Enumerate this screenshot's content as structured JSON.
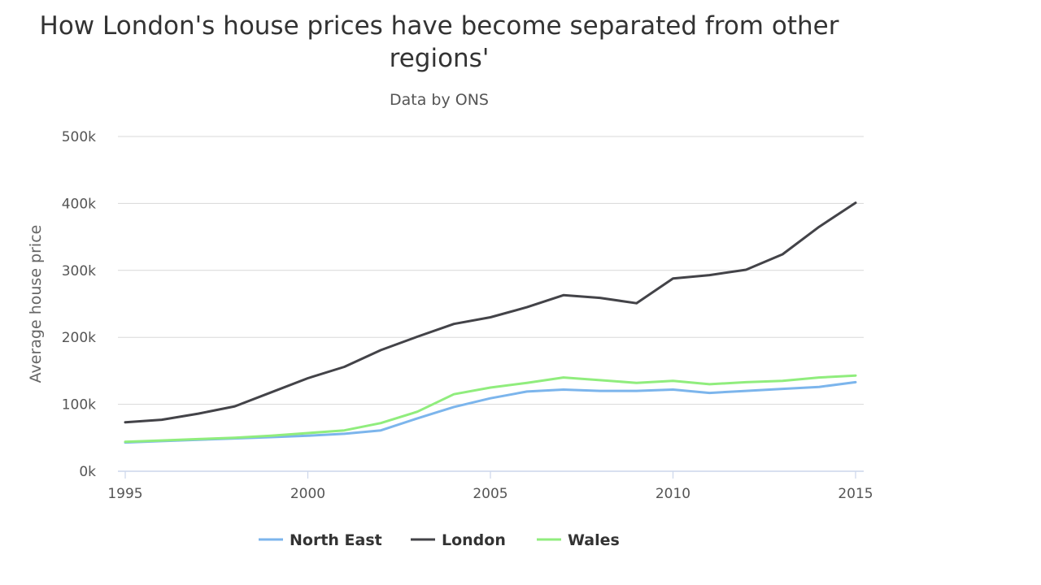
{
  "chart_data": {
    "type": "line",
    "title": "How London's house prices have become separated from other regions'",
    "subtitle": "Data by ONS",
    "ylabel": "Average house price",
    "xlabel": "",
    "xlim": [
      1995,
      2015
    ],
    "ylim": [
      0,
      500000
    ],
    "x_ticks": [
      "1995",
      "2000",
      "2005",
      "2010",
      "2015"
    ],
    "y_ticks": [
      "0k",
      "100k",
      "200k",
      "300k",
      "400k",
      "500k"
    ],
    "grid": true,
    "legend_position": "bottom",
    "x": [
      1995,
      1996,
      1997,
      1998,
      1999,
      2000,
      2001,
      2002,
      2003,
      2004,
      2005,
      2006,
      2007,
      2008,
      2009,
      2010,
      2011,
      2012,
      2013,
      2014,
      2015
    ],
    "series": [
      {
        "name": "North East",
        "color": "#7cb5ec",
        "values": [
          43000,
          45000,
          47000,
          49000,
          51000,
          53000,
          56000,
          61000,
          79000,
          96000,
          109000,
          119000,
          122000,
          120000,
          120000,
          122000,
          117000,
          120000,
          123000,
          126000,
          133000
        ]
      },
      {
        "name": "London",
        "color": "#434348",
        "values": [
          73000,
          77000,
          86000,
          97000,
          118000,
          139000,
          156000,
          181000,
          201000,
          220000,
          230000,
          245000,
          263000,
          259000,
          251000,
          288000,
          293000,
          301000,
          324000,
          365000,
          401000
        ]
      },
      {
        "name": "Wales",
        "color": "#90ed7d",
        "values": [
          44000,
          46000,
          48000,
          50000,
          53000,
          57000,
          61000,
          72000,
          89000,
          115000,
          125000,
          132000,
          140000,
          136000,
          132000,
          135000,
          130000,
          133000,
          135000,
          140000,
          143000
        ]
      }
    ]
  }
}
